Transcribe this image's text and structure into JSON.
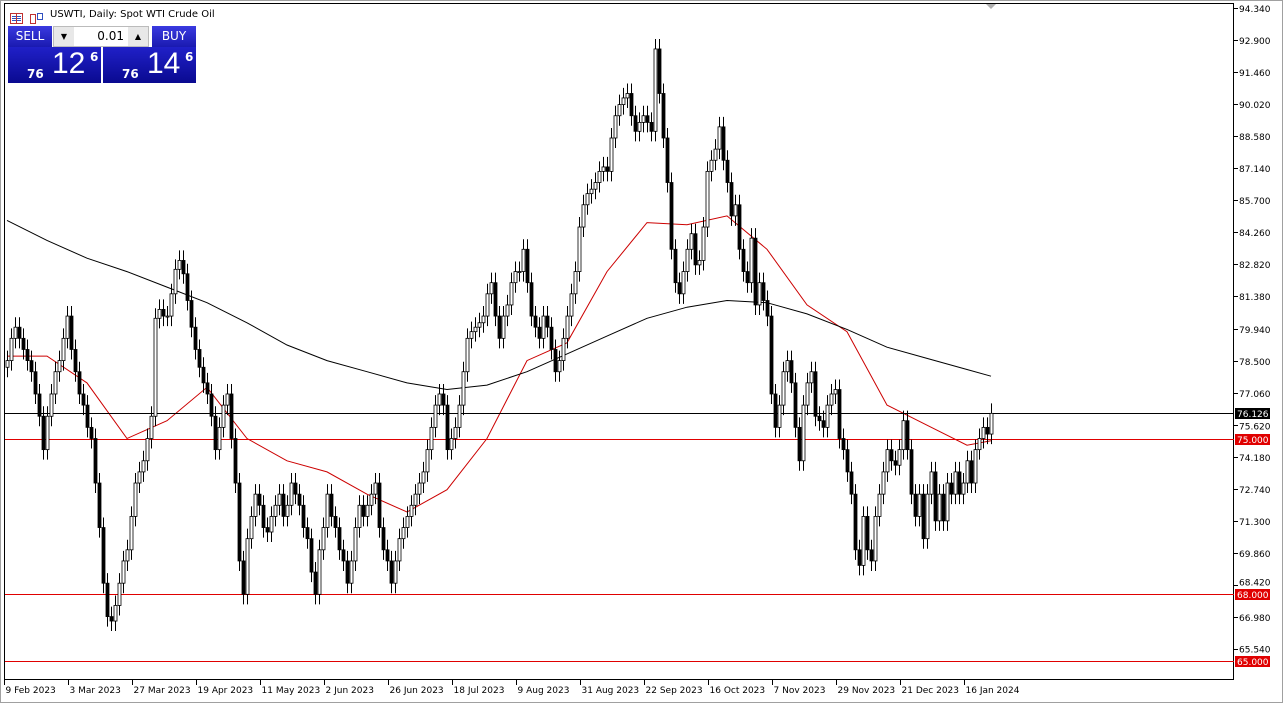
{
  "header": {
    "title": "USWTI, Daily:  Spot WTI Crude Oil",
    "icons": [
      "chart-list-icon",
      "chart-properties-icon"
    ]
  },
  "trade_panel": {
    "sell_label": "SELL",
    "buy_label": "BUY",
    "lot_value": "0.01",
    "sell_price": {
      "prefix": "76",
      "main": "12",
      "suffix": "6"
    },
    "buy_price": {
      "prefix": "76",
      "main": "14",
      "suffix": "6"
    },
    "colors": {
      "button": "#1a1ab0"
    }
  },
  "chart_data": {
    "type": "candlestick",
    "symbol": "USWTI",
    "timeframe": "Daily",
    "ylim": [
      64.9,
      94.6
    ],
    "y_ticks": [
      "94.340",
      "92.900",
      "91.460",
      "90.020",
      "88.580",
      "87.140",
      "85.700",
      "84.260",
      "82.820",
      "81.380",
      "79.940",
      "78.500",
      "77.060",
      "75.620",
      "74.180",
      "72.740",
      "71.300",
      "69.860",
      "68.420",
      "66.980",
      "65.540"
    ],
    "x_ticks": [
      "9 Feb 2023",
      "3 Mar 2023",
      "27 Mar 2023",
      "19 Apr 2023",
      "11 May 2023",
      "2 Jun 2023",
      "26 Jun 2023",
      "18 Jul 2023",
      "9 Aug 2023",
      "31 Aug 2023",
      "22 Sep 2023",
      "16 Oct 2023",
      "7 Nov 2023",
      "29 Nov 2023",
      "21 Dec 2023",
      "16 Jan 2024"
    ],
    "close": [
      78.5,
      79.5,
      80,
      79.5,
      79,
      78.5,
      78,
      77,
      76,
      74.5,
      76,
      77,
      78,
      78.5,
      79.5,
      80.5,
      79,
      78,
      77,
      76.5,
      75.5,
      75,
      73,
      71,
      68.5,
      67,
      66.8,
      67.5,
      68.5,
      69.5,
      70,
      71.5,
      73,
      73.5,
      74,
      75,
      76,
      80.4,
      80.8,
      80.5,
      80.5,
      81.5,
      82.6,
      83,
      82.4,
      81.2,
      80,
      79,
      78.2,
      77.5,
      77,
      76,
      74.5,
      75.5,
      76.5,
      77,
      75,
      73,
      69.5,
      68,
      70.5,
      71.5,
      72.5,
      72,
      71,
      70.8,
      71.5,
      72,
      72.5,
      71.5,
      72,
      73,
      72.5,
      72,
      71,
      70.5,
      69,
      68,
      70,
      71,
      72.5,
      71.5,
      71,
      70,
      69.5,
      68.5,
      69.5,
      71,
      72,
      71.5,
      72,
      72.5,
      73,
      71,
      70,
      69.5,
      68.5,
      69.5,
      70.5,
      71,
      71.5,
      72,
      72.5,
      73,
      73.5,
      74.5,
      75.5,
      76.5,
      77,
      76.5,
      74.5,
      75,
      75.5,
      76.5,
      78,
      79.5,
      79.8,
      80,
      80.2,
      80.5,
      81.5,
      82,
      80.5,
      79.5,
      80.5,
      81,
      82,
      82.5,
      82.5,
      83.5,
      82,
      80.5,
      80,
      79.5,
      80.5,
      80,
      79,
      78,
      78.5,
      79.5,
      80.5,
      81.5,
      82.5,
      84.5,
      85.5,
      86,
      86.2,
      86.5,
      87,
      87.2,
      87,
      88.5,
      89.5,
      90,
      90.3,
      90.5,
      89.5,
      88.8,
      89.2,
      89.5,
      89.2,
      88.8,
      92.5,
      90.5,
      88.5,
      86.5,
      83.5,
      82,
      81.5,
      82.5,
      83.5,
      84.2,
      82.8,
      83,
      84.5,
      87,
      87.5,
      88,
      89,
      87.5,
      86.5,
      85,
      85.5,
      83.5,
      82.5,
      82,
      84,
      81,
      82,
      81.2,
      80.5,
      77,
      75.5,
      76.5,
      78,
      78.5,
      77.5,
      75.5,
      74,
      76.5,
      77.5,
      78,
      76,
      75.8,
      75.5,
      76.5,
      77,
      77.2,
      75,
      74.5,
      73.5,
      72.5,
      70,
      69.3,
      71.5,
      70,
      69.5,
      71.5,
      72.5,
      73.5,
      74.5,
      74,
      73.8,
      74.5,
      75.8,
      74.5,
      72.5,
      71.5,
      72.5,
      70.5,
      72.5,
      73.5,
      71.3,
      72.5,
      71.3,
      73,
      72.5,
      73.5,
      72.5,
      73,
      74,
      73,
      74.5,
      75,
      75.5,
      75.2,
      76.13
    ],
    "first_open": 78.2,
    "moving_averages": [
      {
        "color": "#cc0000",
        "sample_every_bars": 10,
        "values": [
          78.7,
          78.7,
          77.5,
          75,
          75.8,
          77.3,
          75,
          74,
          73.5,
          72.5,
          71.7,
          72.7,
          75,
          78.5,
          79.3,
          82.5,
          84.7,
          84.6,
          85,
          83.5,
          81,
          79.8,
          76.5,
          75.6,
          74.7,
          74.9
        ]
      },
      {
        "color": "#000000",
        "sample_every_bars": 10,
        "values": [
          84.8,
          83.9,
          83.1,
          82.5,
          81.8,
          81.1,
          80.2,
          79.2,
          78.5,
          78,
          77.5,
          77.2,
          77.4,
          78,
          78.8,
          79.6,
          80.4,
          80.9,
          81.2,
          81.1,
          80.6,
          79.9,
          79.1,
          78.6,
          78.1,
          77.8
        ]
      }
    ],
    "horizontal_lines": [
      {
        "price": 76.126,
        "label": "76.126",
        "color": "#000000"
      },
      {
        "price": 75.0,
        "label": "75.000",
        "color": "#e00000"
      },
      {
        "price": 68.0,
        "label": "68.000",
        "color": "#e00000"
      },
      {
        "price": 65.0,
        "label": "65.000",
        "color": "#e00000"
      }
    ],
    "grid": false
  }
}
